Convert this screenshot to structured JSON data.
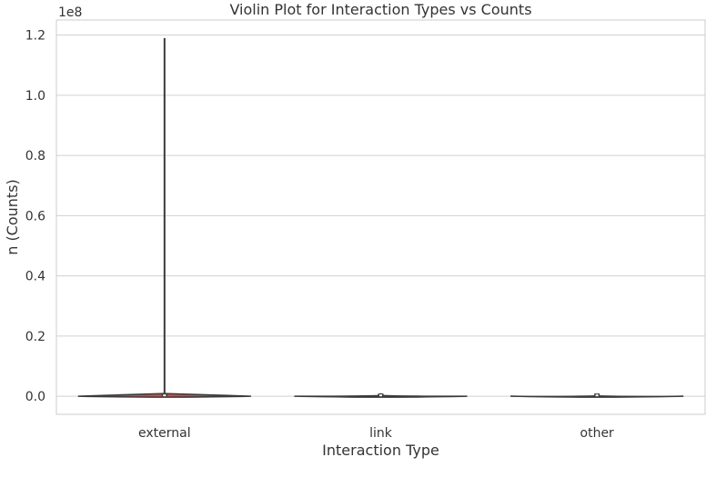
{
  "chart_data": {
    "type": "violin",
    "title": "Violin Plot for Interaction Types vs Counts",
    "xlabel": "Interaction Type",
    "ylabel": "n (Counts)",
    "y_offset_label": "1e8",
    "ylim": [
      -0.06,
      1.25
    ],
    "yticks": [
      0.0,
      0.2,
      0.4,
      0.6,
      0.8,
      1.0,
      1.2
    ],
    "ytick_labels": [
      "0.0",
      "0.2",
      "0.4",
      "0.6",
      "0.8",
      "1.0",
      "1.2"
    ],
    "grid": true,
    "categories": [
      "external",
      "link",
      "other"
    ],
    "series": [
      {
        "category": "external",
        "min": 0.0,
        "max": 1.19,
        "density_peak": 0.012,
        "color": "#c0504d"
      },
      {
        "category": "link",
        "min": 0.0,
        "max": 0.01,
        "density_peak": 0.002,
        "color": "#4c72b0"
      },
      {
        "category": "other",
        "min": 0.0,
        "max": 0.002,
        "density_peak": 0.001,
        "color": "#55a868"
      }
    ]
  }
}
